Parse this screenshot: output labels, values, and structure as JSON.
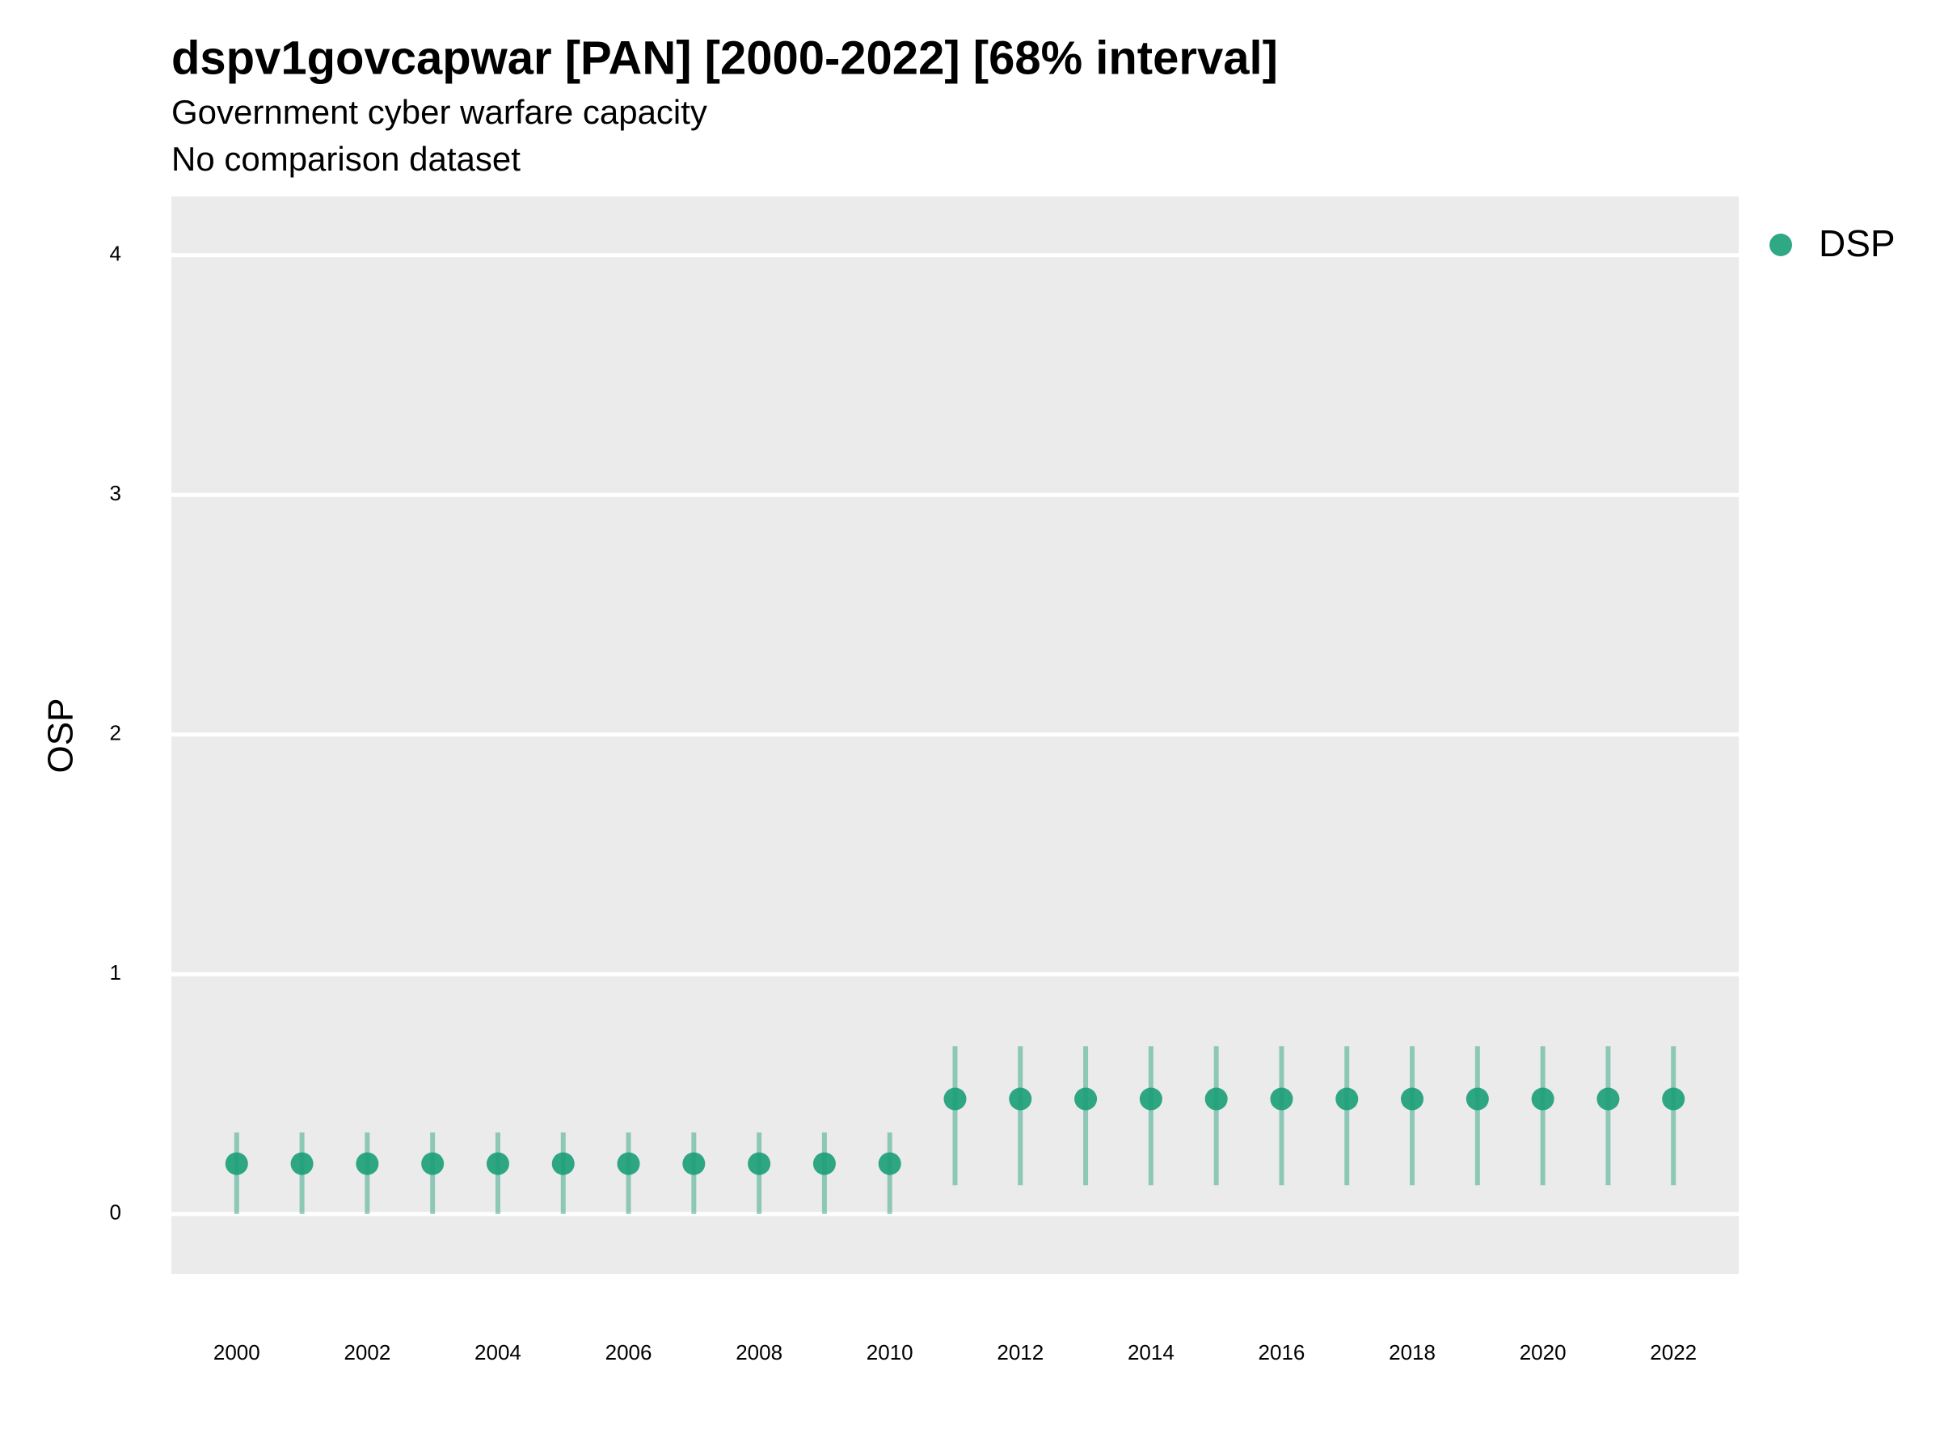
{
  "chart_data": {
    "type": "pointrange",
    "title": "dspv1govcapwar [PAN] [2000-2022] [68% interval]",
    "subtitle": "Government cyber warfare capacity",
    "caption_line": "No comparison dataset",
    "y_label": "OSP",
    "x": [
      2000,
      2001,
      2002,
      2003,
      2004,
      2005,
      2006,
      2007,
      2008,
      2009,
      2010,
      2011,
      2012,
      2013,
      2014,
      2015,
      2016,
      2017,
      2018,
      2019,
      2020,
      2021,
      2022
    ],
    "series": [
      {
        "name": "DSP",
        "color": "#1b9e77",
        "values": [
          0.21,
          0.21,
          0.21,
          0.21,
          0.21,
          0.21,
          0.21,
          0.21,
          0.21,
          0.21,
          0.21,
          0.48,
          0.48,
          0.48,
          0.48,
          0.48,
          0.48,
          0.48,
          0.48,
          0.48,
          0.48,
          0.48,
          0.48
        ],
        "lower": [
          0,
          0,
          0,
          0,
          0,
          0,
          0,
          0,
          0,
          0,
          0,
          0.12,
          0.12,
          0.12,
          0.12,
          0.12,
          0.12,
          0.12,
          0.12,
          0.12,
          0.12,
          0.12,
          0.12
        ],
        "upper": [
          0.34,
          0.34,
          0.34,
          0.34,
          0.34,
          0.34,
          0.34,
          0.34,
          0.34,
          0.34,
          0.34,
          0.7,
          0.7,
          0.7,
          0.7,
          0.7,
          0.7,
          0.7,
          0.7,
          0.7,
          0.7,
          0.7,
          0.7
        ]
      }
    ],
    "xlim": [
      1999,
      2023
    ],
    "xticks": [
      2000,
      2002,
      2004,
      2006,
      2008,
      2010,
      2012,
      2014,
      2016,
      2018,
      2020,
      2022
    ],
    "ylim": [
      -0.25,
      4.245
    ],
    "yticks": [
      0,
      1,
      2,
      3,
      4
    ],
    "grid": "y",
    "legend": "right"
  }
}
